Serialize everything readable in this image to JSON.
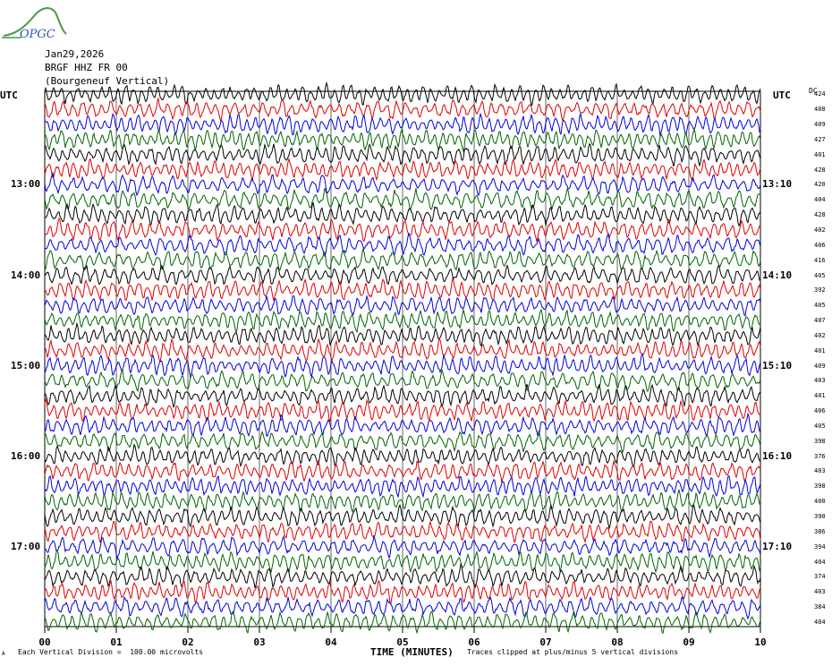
{
  "header": {
    "logo_text": "OPGC",
    "date": "Jan29,2026",
    "channel": "BRGF HHZ FR 00",
    "station": "(Bourgeneuf Vertical)"
  },
  "axis": {
    "left_unit": "UTC",
    "right_unit": "UTC",
    "dc_label": "DC",
    "left_times": [
      "13:00",
      "14:00",
      "15:00",
      "16:00",
      "17:00"
    ],
    "right_times": [
      "13:10",
      "14:10",
      "15:10",
      "16:10",
      "17:10"
    ],
    "x_ticks": [
      "00",
      "01",
      "02",
      "03",
      "04",
      "05",
      "06",
      "07",
      "08",
      "09",
      "10"
    ],
    "x_label": "TIME (MINUTES)"
  },
  "footer": {
    "division_note": "Each Vertical Division =  100.00 microvolts",
    "clip_note": "Traces clipped at plus/minus 5 vertical divisions",
    "corner_mark": "A"
  },
  "colors": {
    "trace_cycle": [
      "#000000",
      "#e00000",
      "#0000dd",
      "#006400"
    ],
    "grid": "#000000"
  },
  "chart_data": {
    "type": "line",
    "title": "",
    "xlabel": "TIME (MINUTES)",
    "xlim": [
      0,
      10
    ],
    "trace_count": 36,
    "trace_minutes": 10,
    "dc_offsets": [
      424,
      408,
      409,
      427,
      401,
      428,
      420,
      404,
      428,
      402,
      406,
      416,
      405,
      392,
      405,
      407,
      402,
      401,
      409,
      403,
      401,
      406,
      405,
      398,
      376,
      403,
      398,
      400,
      390,
      386,
      394,
      404,
      374,
      403,
      384,
      404
    ]
  }
}
